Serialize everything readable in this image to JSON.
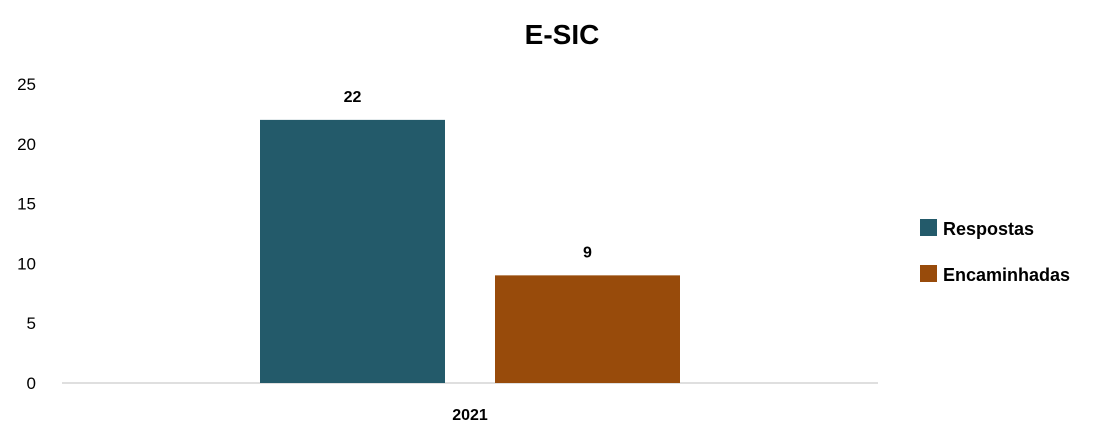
{
  "chart_data": {
    "type": "bar",
    "title": "E-SIC",
    "categories": [
      "2021"
    ],
    "series": [
      {
        "name": "Respostas",
        "values": [
          22
        ],
        "color": "#235a6a"
      },
      {
        "name": "Encaminhadas",
        "values": [
          9
        ],
        "color": "#984b0b"
      }
    ],
    "ylim": [
      0,
      25
    ],
    "yticks": [
      0,
      5,
      10,
      15,
      20,
      25
    ],
    "grid": false,
    "data_labels": true,
    "legend_position": "right"
  }
}
